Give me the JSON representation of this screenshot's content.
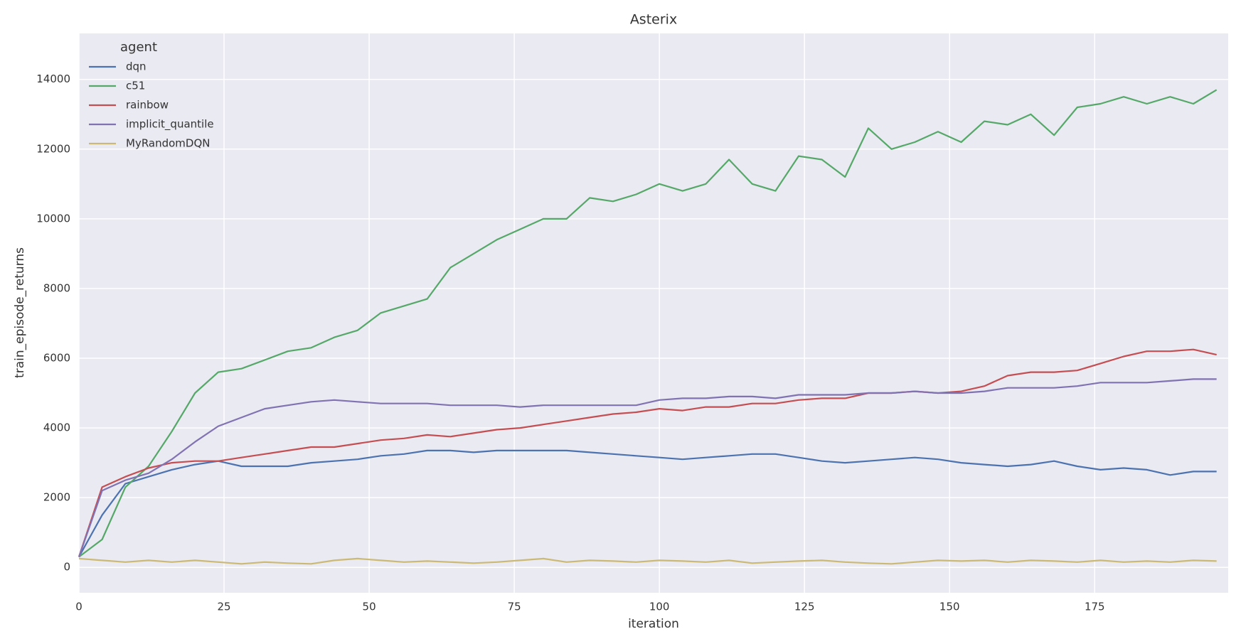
{
  "chart_data": {
    "type": "line",
    "title": "Asterix",
    "x_label": "iteration",
    "y_label": "train_episode_returns",
    "legend_title": "agent",
    "legend_position": "upper left",
    "grid": true,
    "xlim": [
      0,
      198
    ],
    "xticks": [
      0,
      25,
      50,
      75,
      100,
      125,
      150,
      175
    ],
    "ylim": [
      -730,
      15320
    ],
    "yticks": [
      0,
      2000,
      4000,
      6000,
      8000,
      10000,
      12000,
      14000
    ],
    "x": [
      0,
      4,
      8,
      12,
      16,
      20,
      24,
      28,
      32,
      36,
      40,
      44,
      48,
      52,
      56,
      60,
      64,
      68,
      72,
      76,
      80,
      84,
      88,
      92,
      96,
      100,
      104,
      108,
      112,
      116,
      120,
      124,
      128,
      132,
      136,
      140,
      144,
      148,
      152,
      156,
      160,
      164,
      168,
      172,
      176,
      180,
      184,
      188,
      192,
      196
    ],
    "series": [
      {
        "name": "dqn",
        "color": "#4c72b0",
        "values": [
          300,
          1500,
          2400,
          2600,
          2800,
          2950,
          3050,
          2900,
          2900,
          2900,
          3000,
          3050,
          3100,
          3200,
          3250,
          3350,
          3350,
          3300,
          3350,
          3350,
          3350,
          3350,
          3300,
          3250,
          3200,
          3150,
          3100,
          3150,
          3200,
          3250,
          3250,
          3150,
          3050,
          3000,
          3050,
          3100,
          3150,
          3100,
          3000,
          2950,
          2900,
          2950,
          3050,
          2900,
          2800,
          2850,
          2800,
          2650,
          2750,
          2750
        ]
      },
      {
        "name": "c51",
        "color": "#55a868",
        "values": [
          300,
          800,
          2300,
          2900,
          3900,
          5000,
          5600,
          5700,
          5950,
          6200,
          6300,
          6600,
          6800,
          7300,
          7500,
          7700,
          8600,
          9000,
          9400,
          9700,
          10000,
          10000,
          10600,
          10500,
          10700,
          11000,
          10800,
          11000,
          11700,
          11000,
          10800,
          11800,
          11700,
          11200,
          12600,
          12000,
          12200,
          12500,
          12200,
          12800,
          12700,
          13000,
          12400,
          13200,
          13300,
          13500,
          13300,
          13500,
          13300,
          13700
        ]
      },
      {
        "name": "rainbow",
        "color": "#c44e52",
        "values": [
          300,
          2300,
          2600,
          2850,
          3000,
          3050,
          3050,
          3150,
          3250,
          3350,
          3450,
          3450,
          3550,
          3650,
          3700,
          3800,
          3750,
          3850,
          3950,
          4000,
          4100,
          4200,
          4300,
          4400,
          4450,
          4550,
          4500,
          4600,
          4600,
          4700,
          4700,
          4800,
          4850,
          4850,
          5000,
          5000,
          5050,
          5000,
          5050,
          5200,
          5500,
          5600,
          5600,
          5650,
          5850,
          6050,
          6200,
          6200,
          6250,
          6100
        ]
      },
      {
        "name": "implicit_quantile",
        "color": "#8172b2",
        "values": [
          300,
          2200,
          2500,
          2700,
          3100,
          3600,
          4050,
          4300,
          4550,
          4650,
          4750,
          4800,
          4750,
          4700,
          4700,
          4700,
          4650,
          4650,
          4650,
          4600,
          4650,
          4650,
          4650,
          4650,
          4650,
          4800,
          4850,
          4850,
          4900,
          4900,
          4850,
          4950,
          4950,
          4950,
          5000,
          5000,
          5050,
          5000,
          5000,
          5050,
          5150,
          5150,
          5150,
          5200,
          5300,
          5300,
          5300,
          5350,
          5400,
          5400
        ]
      },
      {
        "name": "MyRandomDQN",
        "color": "#ccb974",
        "values": [
          250,
          200,
          150,
          200,
          150,
          200,
          150,
          100,
          150,
          120,
          100,
          200,
          250,
          200,
          150,
          180,
          150,
          120,
          150,
          200,
          250,
          150,
          200,
          180,
          150,
          200,
          180,
          150,
          200,
          120,
          150,
          180,
          200,
          150,
          120,
          100,
          150,
          200,
          180,
          200,
          150,
          200,
          180,
          150,
          200,
          150,
          180,
          150,
          200,
          180
        ]
      }
    ]
  }
}
